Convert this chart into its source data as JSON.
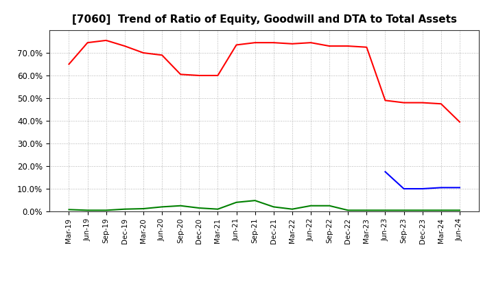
{
  "title": "[7060]  Trend of Ratio of Equity, Goodwill and DTA to Total Assets",
  "x_labels": [
    "Mar-19",
    "Jun-19",
    "Sep-19",
    "Dec-19",
    "Mar-20",
    "Jun-20",
    "Sep-20",
    "Dec-20",
    "Mar-21",
    "Jun-21",
    "Sep-21",
    "Dec-21",
    "Mar-22",
    "Jun-22",
    "Sep-22",
    "Dec-22",
    "Mar-23",
    "Jun-23",
    "Sep-23",
    "Dec-23",
    "Mar-24",
    "Jun-24"
  ],
  "equity": [
    0.65,
    0.745,
    0.755,
    0.73,
    0.7,
    0.69,
    0.605,
    0.6,
    0.6,
    0.735,
    0.745,
    0.745,
    0.74,
    0.745,
    0.73,
    0.73,
    0.725,
    0.49,
    0.48,
    0.48,
    0.475,
    0.395
  ],
  "goodwill": [
    null,
    null,
    null,
    null,
    null,
    null,
    null,
    null,
    null,
    null,
    null,
    null,
    null,
    null,
    null,
    null,
    null,
    0.175,
    0.1,
    0.1,
    0.105,
    0.105
  ],
  "dta": [
    0.008,
    0.005,
    0.005,
    0.01,
    0.012,
    0.02,
    0.025,
    0.015,
    0.01,
    0.04,
    0.048,
    0.02,
    0.01,
    0.025,
    0.025,
    0.005,
    0.005,
    0.005,
    0.005,
    0.005,
    0.005,
    0.005
  ],
  "equity_color": "#ff0000",
  "goodwill_color": "#0000ff",
  "dta_color": "#008000",
  "ylim": [
    0.0,
    0.8
  ],
  "yticks": [
    0.0,
    0.1,
    0.2,
    0.3,
    0.4,
    0.5,
    0.6,
    0.7
  ],
  "background_color": "#ffffff",
  "grid_color": "#b0b0b0",
  "title_fontsize": 11,
  "linewidth": 1.5
}
